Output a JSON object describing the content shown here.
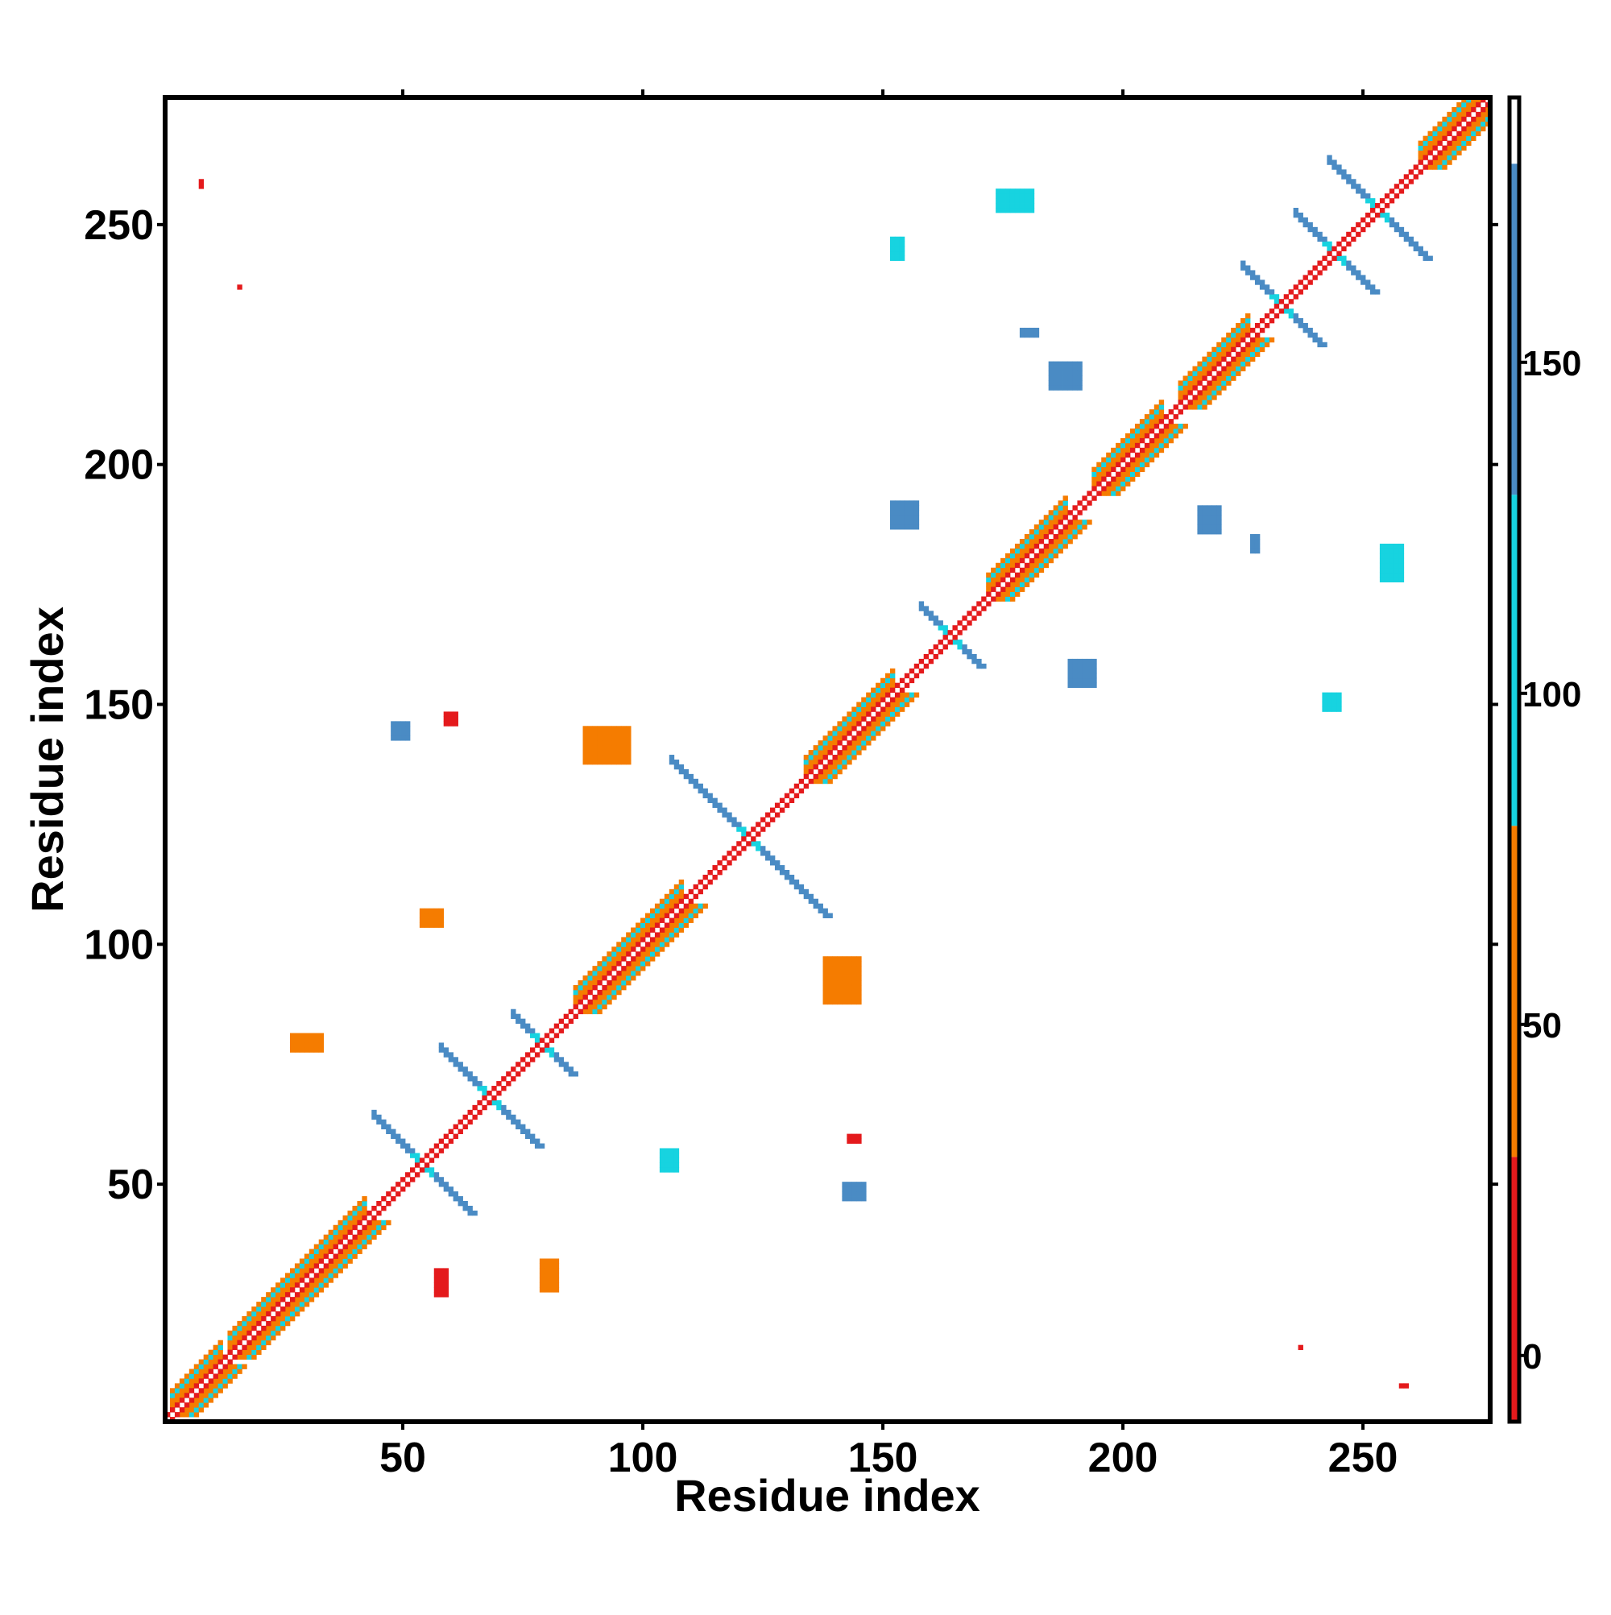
{
  "chart_data": {
    "type": "heatmap",
    "title": "",
    "xlabel": "Residue index",
    "ylabel": "Residue index",
    "xlim": [
      1,
      276
    ],
    "ylim": [
      1,
      276
    ],
    "x_ticks": [
      50,
      100,
      150,
      200,
      250
    ],
    "y_ticks": [
      50,
      100,
      150,
      200,
      250
    ],
    "grid": false,
    "colorbar": {
      "placement": "right",
      "range": [
        -10,
        190
      ],
      "ticks": [
        0,
        50,
        100,
        150
      ],
      "bands": [
        {
          "from": -10,
          "to": 30,
          "color": "#e41a1c"
        },
        {
          "from": 30,
          "to": 80,
          "color": "#f57c00"
        },
        {
          "from": 80,
          "to": 130,
          "color": "#17d3e0"
        },
        {
          "from": 130,
          "to": 180,
          "color": "#4a8bc4"
        },
        {
          "from": 180,
          "to": 190,
          "color": "#ffffff"
        }
      ]
    },
    "main_diagonal": {
      "from": 1,
      "to": 276,
      "value": 20
    },
    "features": [
      {
        "kind": "helix_band",
        "from": 2,
        "to": 12,
        "value": 55
      },
      {
        "kind": "helix_band",
        "from": 14,
        "to": 22,
        "value": 55
      },
      {
        "kind": "helix_band",
        "from": 22,
        "to": 42,
        "value": 55
      },
      {
        "kind": "helix_band",
        "from": 86,
        "to": 100,
        "value": 55
      },
      {
        "kind": "helix_band",
        "from": 100,
        "to": 108,
        "value": 55
      },
      {
        "kind": "helix_band",
        "from": 134,
        "to": 152,
        "value": 55
      },
      {
        "kind": "helix_band",
        "from": 172,
        "to": 188,
        "value": 55
      },
      {
        "kind": "helix_band",
        "from": 194,
        "to": 208,
        "value": 55
      },
      {
        "kind": "helix_band",
        "from": 212,
        "to": 226,
        "value": 55
      },
      {
        "kind": "helix_band",
        "from": 262,
        "to": 276,
        "value": 55
      },
      {
        "kind": "cross",
        "center": 54,
        "half": 10,
        "value": 150
      },
      {
        "kind": "cross",
        "center": 68,
        "half": 10,
        "value": 150
      },
      {
        "kind": "cross",
        "center": 79,
        "half": 6,
        "value": 150
      },
      {
        "kind": "cross",
        "center": 122,
        "half": 16,
        "value": 150
      },
      {
        "kind": "cross",
        "center": 164,
        "half": 6,
        "value": 150
      },
      {
        "kind": "cross",
        "center": 233,
        "half": 8,
        "value": 150
      },
      {
        "kind": "cross",
        "center": 244,
        "half": 8,
        "value": 150
      },
      {
        "kind": "cross",
        "center": 253,
        "half": 10,
        "value": 150
      },
      {
        "kind": "patch",
        "x": 104,
        "y": 53,
        "w": 4,
        "h": 5,
        "value": 110
      },
      {
        "kind": "patch",
        "x": 54,
        "y": 104,
        "w": 5,
        "h": 4,
        "value": 60
      },
      {
        "kind": "patch",
        "x": 152,
        "y": 187,
        "w": 6,
        "h": 6,
        "value": 150
      },
      {
        "kind": "patch",
        "x": 189,
        "y": 154,
        "w": 6,
        "h": 6,
        "value": 150
      },
      {
        "kind": "patch",
        "x": 185,
        "y": 216,
        "w": 7,
        "h": 6,
        "value": 150
      },
      {
        "kind": "patch",
        "x": 216,
        "y": 186,
        "w": 5,
        "h": 6,
        "value": 150
      },
      {
        "kind": "patch",
        "x": 174,
        "y": 253,
        "w": 8,
        "h": 5,
        "value": 110
      },
      {
        "kind": "patch",
        "x": 254,
        "y": 176,
        "w": 5,
        "h": 8,
        "value": 110
      },
      {
        "kind": "patch",
        "x": 88,
        "y": 138,
        "w": 10,
        "h": 8,
        "value": 55
      },
      {
        "kind": "patch",
        "x": 138,
        "y": 88,
        "w": 8,
        "h": 10,
        "value": 55
      },
      {
        "kind": "patch",
        "x": 27,
        "y": 78,
        "w": 7,
        "h": 4,
        "value": 55
      },
      {
        "kind": "patch",
        "x": 79,
        "y": 28,
        "w": 4,
        "h": 7,
        "value": 55
      },
      {
        "kind": "patch",
        "x": 57,
        "y": 27,
        "w": 3,
        "h": 6,
        "value": 20
      },
      {
        "kind": "patch",
        "x": 48,
        "y": 143,
        "w": 4,
        "h": 4,
        "value": 150
      },
      {
        "kind": "patch",
        "x": 142,
        "y": 47,
        "w": 5,
        "h": 4,
        "value": 150
      },
      {
        "kind": "patch",
        "x": 59,
        "y": 146,
        "w": 3,
        "h": 3,
        "value": 20
      },
      {
        "kind": "patch",
        "x": 143,
        "y": 59,
        "w": 3,
        "h": 2,
        "value": 20
      },
      {
        "kind": "patch",
        "x": 152,
        "y": 243,
        "w": 3,
        "h": 5,
        "value": 110
      },
      {
        "kind": "patch",
        "x": 242,
        "y": 149,
        "w": 4,
        "h": 4,
        "value": 110
      },
      {
        "kind": "patch",
        "x": 179,
        "y": 227,
        "w": 4,
        "h": 2,
        "value": 150
      },
      {
        "kind": "patch",
        "x": 227,
        "y": 182,
        "w": 2,
        "h": 4,
        "value": 150
      },
      {
        "kind": "patch",
        "x": 8,
        "y": 258,
        "w": 1,
        "h": 2,
        "value": 10
      },
      {
        "kind": "patch",
        "x": 258,
        "y": 8,
        "w": 2,
        "h": 1,
        "value": 10
      },
      {
        "kind": "patch",
        "x": 16,
        "y": 237,
        "w": 1,
        "h": 1,
        "value": 10
      },
      {
        "kind": "patch",
        "x": 237,
        "y": 16,
        "w": 1,
        "h": 1,
        "value": 10
      }
    ]
  }
}
